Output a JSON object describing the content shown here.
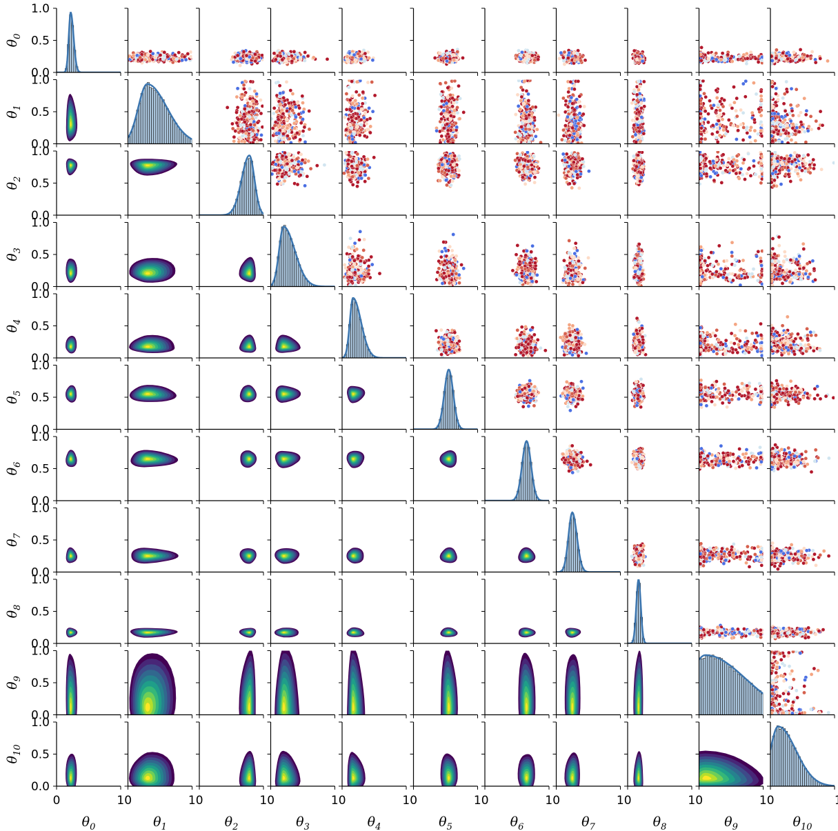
{
  "chart_data": {
    "type": "pairplot",
    "variables": [
      "θ0",
      "θ1",
      "θ2",
      "θ3",
      "θ4",
      "θ5",
      "θ6",
      "θ7",
      "θ8",
      "θ9",
      "θ10"
    ],
    "variable_symbol": "θ",
    "variable_subscripts": [
      "0",
      "1",
      "2",
      "3",
      "4",
      "5",
      "6",
      "7",
      "8",
      "9",
      "10"
    ],
    "diagonal": "histogram + kde",
    "upper_triangle": "scatter",
    "lower_triangle": "filled kde contours",
    "x_range": [
      0,
      1
    ],
    "y_range": [
      0,
      1
    ],
    "ytick_labels": [
      "0.0",
      "0.5",
      "1.0"
    ],
    "xtick_labels_bottom": [
      "0",
      "10",
      "10",
      "10",
      "10",
      "10",
      "10",
      "10",
      "10",
      "10",
      "10",
      "1"
    ],
    "grid": false,
    "marginals": {
      "θ0": {
        "center": 0.22,
        "spread": 0.03,
        "skew": 0.5,
        "ylim_max": 1.0
      },
      "θ1": {
        "center": 0.3,
        "spread": 0.14,
        "skew": 1.2
      },
      "θ2": {
        "center": 0.78,
        "spread": 0.08,
        "skew": -0.5
      },
      "θ3": {
        "center": 0.2,
        "spread": 0.07,
        "skew": 1.5
      },
      "θ4": {
        "center": 0.17,
        "spread": 0.05,
        "skew": 1.5
      },
      "θ5": {
        "center": 0.55,
        "spread": 0.07,
        "skew": 0
      },
      "θ6": {
        "center": 0.65,
        "spread": 0.07,
        "skew": 0
      },
      "θ7": {
        "center": 0.25,
        "spread": 0.06,
        "skew": 0.2
      },
      "θ8": {
        "center": 0.17,
        "spread": 0.035,
        "skew": 0
      },
      "θ9": {
        "center": 0.1,
        "spread": 0.25,
        "skew": 1.5
      },
      "θ10": {
        "center": 0.12,
        "spread": 0.12,
        "skew": 1.3
      }
    },
    "colors": {
      "kde_line": "#3b75af",
      "hist_fill": "#a9c4dc",
      "scatter_dark": "#b2182b",
      "scatter_light": "#f4a582",
      "scatter_blue": "#4a6fe3",
      "contour_outer": "#440154",
      "contour_inner": "#fde725"
    },
    "contour_palette": [
      "#440154",
      "#482677",
      "#3e4a89",
      "#31688e",
      "#26828e",
      "#1f9e89",
      "#35b779",
      "#6ece58",
      "#b5de2b",
      "#fde725"
    ]
  }
}
